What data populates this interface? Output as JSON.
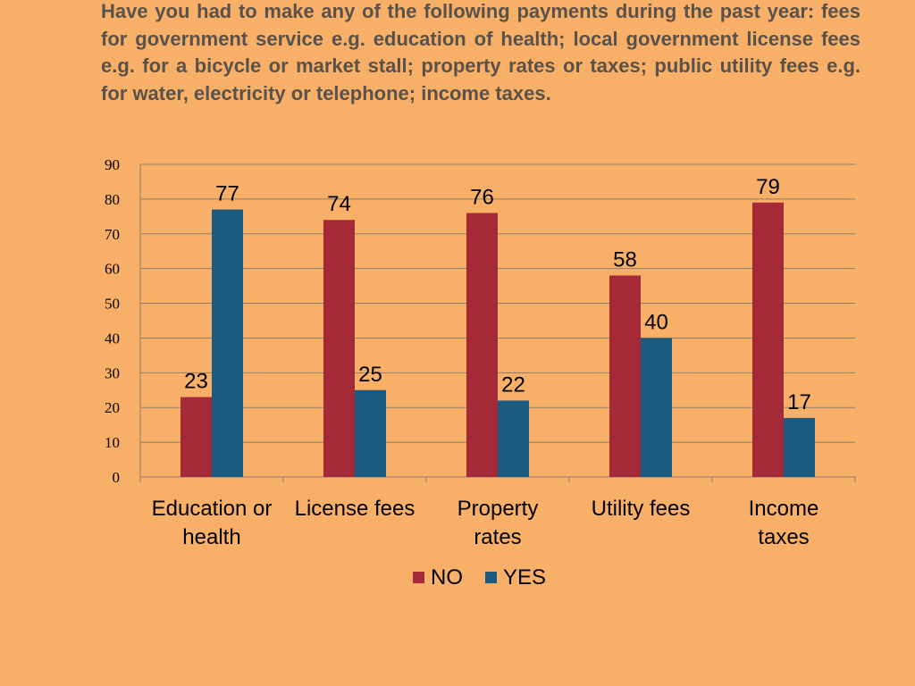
{
  "slide": {
    "question": "Have you had to make any of the following payments during the past year: fees for government service e.g. education of health; local government license fees e.g. for a bicycle or market stall; property rates or taxes; public utility fees e.g. for water, electricity or telephone; income taxes."
  },
  "colors": {
    "background": "#f8b068",
    "no": "#a42a37",
    "yes": "#1d5a80",
    "gridline": "#8c7c6c"
  },
  "chart_data": {
    "type": "bar",
    "title": "",
    "xlabel": "",
    "ylabel": "",
    "categories": [
      [
        "Education or",
        "health"
      ],
      [
        "License fees"
      ],
      [
        "Property",
        "rates"
      ],
      [
        "Utility fees"
      ],
      [
        "Income",
        "taxes"
      ]
    ],
    "series": [
      {
        "name": "NO",
        "color": "#a42a37",
        "values": [
          23,
          74,
          76,
          58,
          79
        ]
      },
      {
        "name": "YES",
        "color": "#1d5a80",
        "values": [
          77,
          25,
          22,
          40,
          17
        ]
      }
    ],
    "ylim": [
      0,
      90
    ],
    "yticks": [
      "0",
      "10",
      "20",
      "30",
      "40",
      "50",
      "60",
      "70",
      "80",
      "90"
    ],
    "grid": true,
    "legend": "bottom",
    "data_labels": true
  }
}
